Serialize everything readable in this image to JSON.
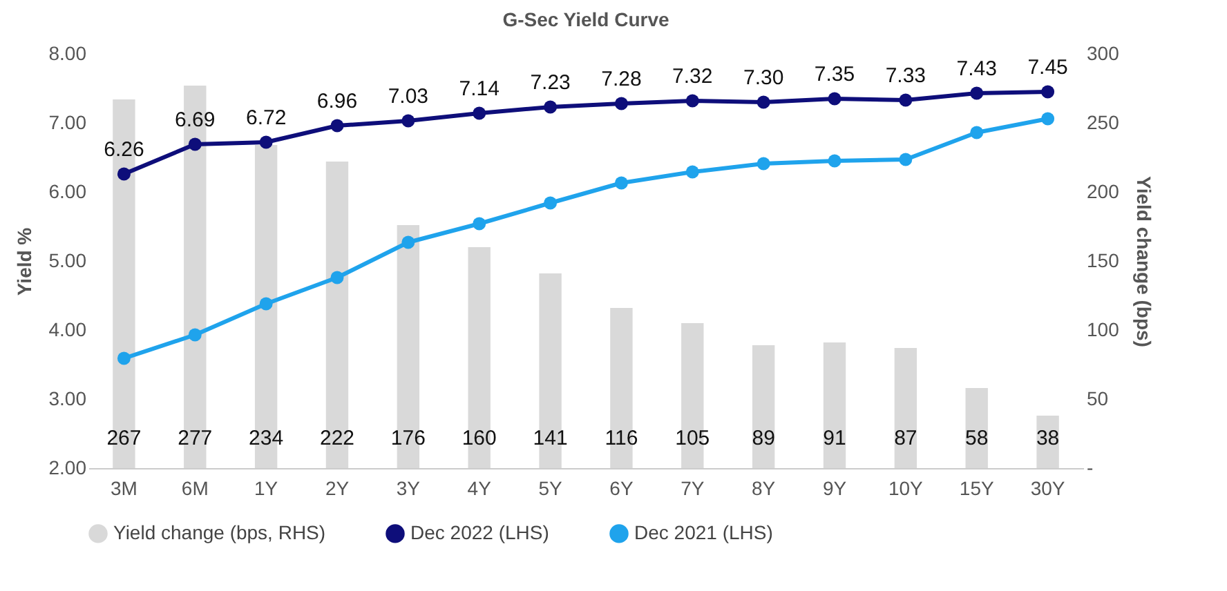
{
  "chart_data": {
    "type": "bar",
    "title": "G-Sec Yield Curve",
    "ylabel": "Yield %",
    "y2label": "Yield change (bps)",
    "categories": [
      "3M",
      "6M",
      "1Y",
      "2Y",
      "3Y",
      "4Y",
      "5Y",
      "6Y",
      "7Y",
      "8Y",
      "9Y",
      "10Y",
      "15Y",
      "30Y"
    ],
    "series": [
      {
        "name": "Yield change (bps, RHS)",
        "axis": "y2",
        "color": "#d9d9d9",
        "values": [
          267,
          277,
          234,
          222,
          176,
          160,
          141,
          116,
          105,
          89,
          91,
          87,
          58,
          38
        ],
        "value_labels": [
          "267",
          "277",
          "234",
          "222",
          "176",
          "160",
          "141",
          "116",
          "105",
          "89",
          "91",
          "87",
          "58",
          "38"
        ]
      },
      {
        "name": "Dec 2022 (LHS)",
        "type": "line",
        "color": "#0e0e7a",
        "values": [
          6.26,
          6.69,
          6.72,
          6.96,
          7.03,
          7.14,
          7.23,
          7.28,
          7.32,
          7.3,
          7.35,
          7.33,
          7.43,
          7.45
        ],
        "value_labels": [
          "6.26",
          "6.69",
          "6.72",
          "6.96",
          "7.03",
          "7.14",
          "7.23",
          "7.28",
          "7.32",
          "7.30",
          "7.35",
          "7.33",
          "7.43",
          "7.45"
        ]
      },
      {
        "name": "Dec 2021 (LHS)",
        "type": "line",
        "color": "#1fa3ec",
        "values": [
          3.59,
          3.93,
          4.38,
          4.76,
          5.27,
          5.54,
          5.84,
          6.13,
          6.29,
          6.41,
          6.45,
          6.47,
          6.86,
          7.06
        ]
      }
    ],
    "ylim": [
      2,
      8
    ],
    "yticks": [
      {
        "value": 2,
        "label": "2.00"
      },
      {
        "value": 3,
        "label": "3.00"
      },
      {
        "value": 4,
        "label": "4.00"
      },
      {
        "value": 5,
        "label": "5.00"
      },
      {
        "value": 6,
        "label": "6.00"
      },
      {
        "value": 7,
        "label": "7.00"
      },
      {
        "value": 8,
        "label": "8.00"
      }
    ],
    "y2lim": [
      0,
      300
    ],
    "y2ticks": [
      {
        "value": 0,
        "label": "-"
      },
      50,
      100,
      150,
      200,
      250,
      300
    ],
    "marker": "circle",
    "grid": false,
    "legend": "bottom"
  }
}
